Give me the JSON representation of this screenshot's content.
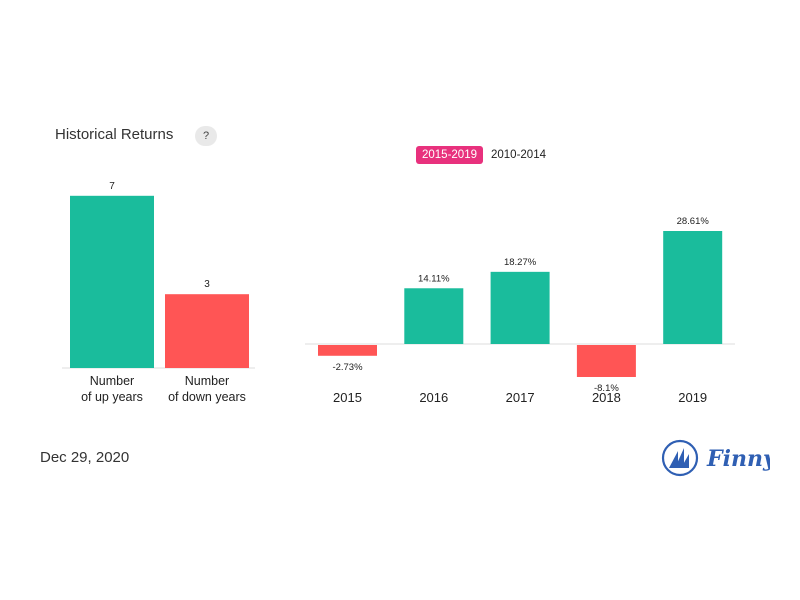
{
  "header": {
    "title": "Historical Returns",
    "help_label": "?"
  },
  "tabs": [
    {
      "label": "2015-2019",
      "active": true
    },
    {
      "label": "2010-2014",
      "active": false
    }
  ],
  "footer": {
    "date": "Dec 29, 2020",
    "brand": "Finny"
  },
  "colors": {
    "up": "#1abc9c",
    "down": "#ff5555",
    "active_tab": "#e8317d",
    "brand": "#2f5fb3"
  },
  "chart_data": [
    {
      "type": "bar",
      "categories": [
        [
          "Number",
          "of up years"
        ],
        [
          "Number",
          "of down years"
        ]
      ],
      "values": [
        7,
        3
      ],
      "data_labels": [
        "7",
        "3"
      ]
    },
    {
      "type": "bar",
      "categories": [
        "2015",
        "2016",
        "2017",
        "2018",
        "2019"
      ],
      "values": [
        -2.73,
        14.11,
        18.27,
        -8.1,
        28.61
      ],
      "data_labels": [
        "-2.73%",
        "14.11%",
        "18.27%",
        "-8.1%",
        "28.61%"
      ]
    }
  ]
}
